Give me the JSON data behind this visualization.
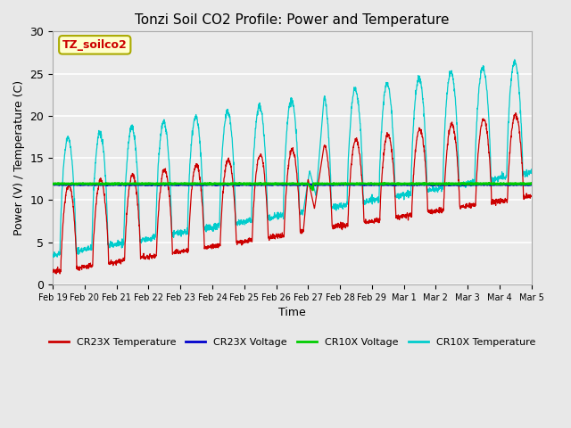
{
  "title": "Tonzi Soil CO2 Profile: Power and Temperature",
  "xlabel": "Time",
  "ylabel": "Power (V) / Temperature (C)",
  "ylim": [
    0,
    30
  ],
  "xlim_start": 0,
  "xlim_end": 15,
  "xtick_positions": [
    0,
    1,
    2,
    3,
    4,
    5,
    6,
    7,
    8,
    9,
    10,
    11,
    12,
    13,
    14,
    15
  ],
  "xtick_labels": [
    "Feb 19",
    "Feb 20",
    "Feb 21",
    "Feb 22",
    "Feb 23",
    "Feb 24",
    "Feb 25",
    "Feb 26",
    "Feb 27",
    "Feb 28",
    "Feb 29",
    "Mar 1",
    "Mar 2",
    "Mar 3",
    "Mar 4",
    "Mar 5"
  ],
  "annotation_box": "TZ_soilco2",
  "annotation_color": "#cc0000",
  "annotation_bg": "#ffffcc",
  "cr23x_temp_color": "#cc0000",
  "cr23x_volt_color": "#0000cc",
  "cr10x_volt_color": "#00cc00",
  "cr10x_temp_color": "#00cccc",
  "voltage_level_cr23x": 11.85,
  "voltage_level_cr10x": 11.95,
  "bg_color": "#e8e8e8",
  "inner_bg_color": "#ebebeb",
  "grid_color": "#ffffff",
  "title_fontsize": 11,
  "legend_labels": [
    "CR23X Temperature",
    "CR23X Voltage",
    "CR10X Voltage",
    "CR10X Temperature"
  ],
  "legend_colors": [
    "#cc0000",
    "#0000cc",
    "#00cc00",
    "#00cccc"
  ]
}
